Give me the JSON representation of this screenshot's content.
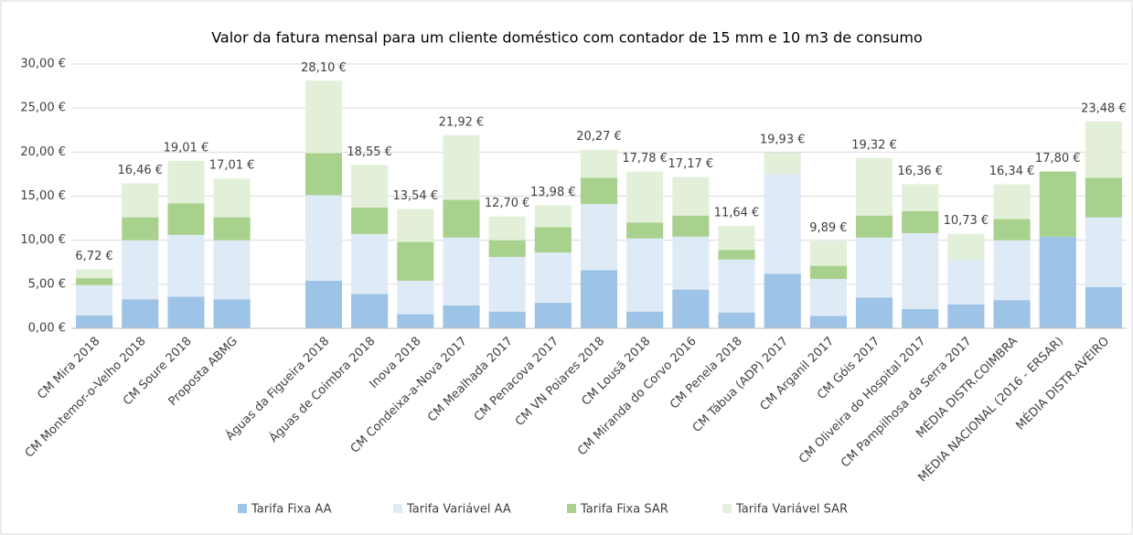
{
  "chart_data": {
    "type": "stacked_bar",
    "title": "Valor da fatura mensal para um cliente doméstico com contador de 15 mm e 10 m3 de consumo",
    "categories": [
      "CM Mira 2018",
      "CM Montemor-o-Velho 2018",
      "CM Soure 2018",
      "Proposta ABMG",
      null,
      "Águas da Figueira 2018",
      "Águas de Coimbra 2018",
      "Inova 2018",
      "CM Condeixa-a-Nova 2017",
      "CM Mealhada 2017",
      "CM Penacova 2017",
      "CM VN Poiares 2018",
      "CM Lousã 2018",
      "CM Miranda do Corvo 2016",
      "CM Penela 2018",
      "CM Tábua (ADP) 2017",
      "CM Arganil 2017",
      "CM Góis 2017",
      "CM Oliveira do Hospital 2017",
      "CM Pampilhosa da Serra 2017",
      "MÉDIA DISTR.COIMBRA",
      "MÉDIA NACIONAL (2016 - ERSAR)",
      "MÉDIA DISTR.AVEIRO"
    ],
    "series": [
      {
        "name": "Tarifa Fixa AA",
        "color": "#9dc3e6",
        "values": [
          1.45,
          3.3,
          3.6,
          3.3,
          null,
          5.4,
          3.9,
          1.6,
          2.6,
          1.9,
          2.9,
          6.6,
          1.9,
          4.4,
          1.8,
          6.2,
          1.4,
          3.5,
          2.2,
          2.7,
          3.2,
          10.4,
          4.7
        ]
      },
      {
        "name": "Tarifa Variável AA",
        "color": "#deebf7",
        "values": [
          3.45,
          6.7,
          7.0,
          6.7,
          null,
          9.7,
          6.8,
          3.8,
          7.7,
          6.2,
          5.7,
          7.5,
          8.3,
          6.0,
          6.0,
          11.3,
          4.2,
          6.8,
          8.6,
          5.1,
          6.8,
          0,
          7.9
        ]
      },
      {
        "name": "Tarifa Fixa SAR",
        "color": "#a9d18e",
        "values": [
          0.8,
          2.6,
          3.6,
          2.6,
          null,
          4.8,
          3.0,
          4.4,
          4.3,
          1.9,
          2.9,
          3.0,
          1.8,
          2.4,
          1.1,
          0,
          1.5,
          2.5,
          2.5,
          0,
          2.4,
          7.4,
          4.5
        ]
      },
      {
        "name": "Tarifa Variável SAR",
        "color": "#e2f0d9",
        "values": [
          1.02,
          3.86,
          4.81,
          4.41,
          null,
          8.2,
          4.85,
          3.74,
          7.32,
          2.7,
          2.48,
          3.17,
          5.78,
          4.37,
          2.74,
          2.43,
          2.79,
          6.52,
          3.06,
          2.93,
          3.94,
          0,
          6.38
        ]
      }
    ],
    "totals": [
      6.72,
      16.46,
      19.01,
      17.01,
      null,
      28.1,
      18.55,
      13.54,
      21.92,
      12.7,
      13.98,
      20.27,
      17.78,
      17.17,
      11.64,
      19.93,
      9.89,
      19.32,
      16.36,
      10.73,
      16.34,
      17.8,
      23.48
    ],
    "total_labels": [
      "6,72 €",
      "16,46 €",
      "19,01 €",
      "17,01 €",
      null,
      "28,10 €",
      "18,55 €",
      "13,54 €",
      "21,92 €",
      "12,70 €",
      "13,98 €",
      "20,27 €",
      "17,78 €",
      "17,17 €",
      "11,64 €",
      "19,93 €",
      "9,89 €",
      "19,32 €",
      "16,36 €",
      "10,73 €",
      "16,34 €",
      "17,80 €",
      "23,48 €"
    ],
    "ylim": [
      0,
      30
    ],
    "yticks": [
      {
        "value": 0,
        "label": "0,00 €"
      },
      {
        "value": 5,
        "label": "5,00 €"
      },
      {
        "value": 10,
        "label": "10,00 €"
      },
      {
        "value": 15,
        "label": "15,00 €"
      },
      {
        "value": 20,
        "label": "20,00 €"
      },
      {
        "value": 25,
        "label": "25,00 €"
      },
      {
        "value": 30,
        "label": "30,00 €"
      }
    ],
    "grid": true
  }
}
